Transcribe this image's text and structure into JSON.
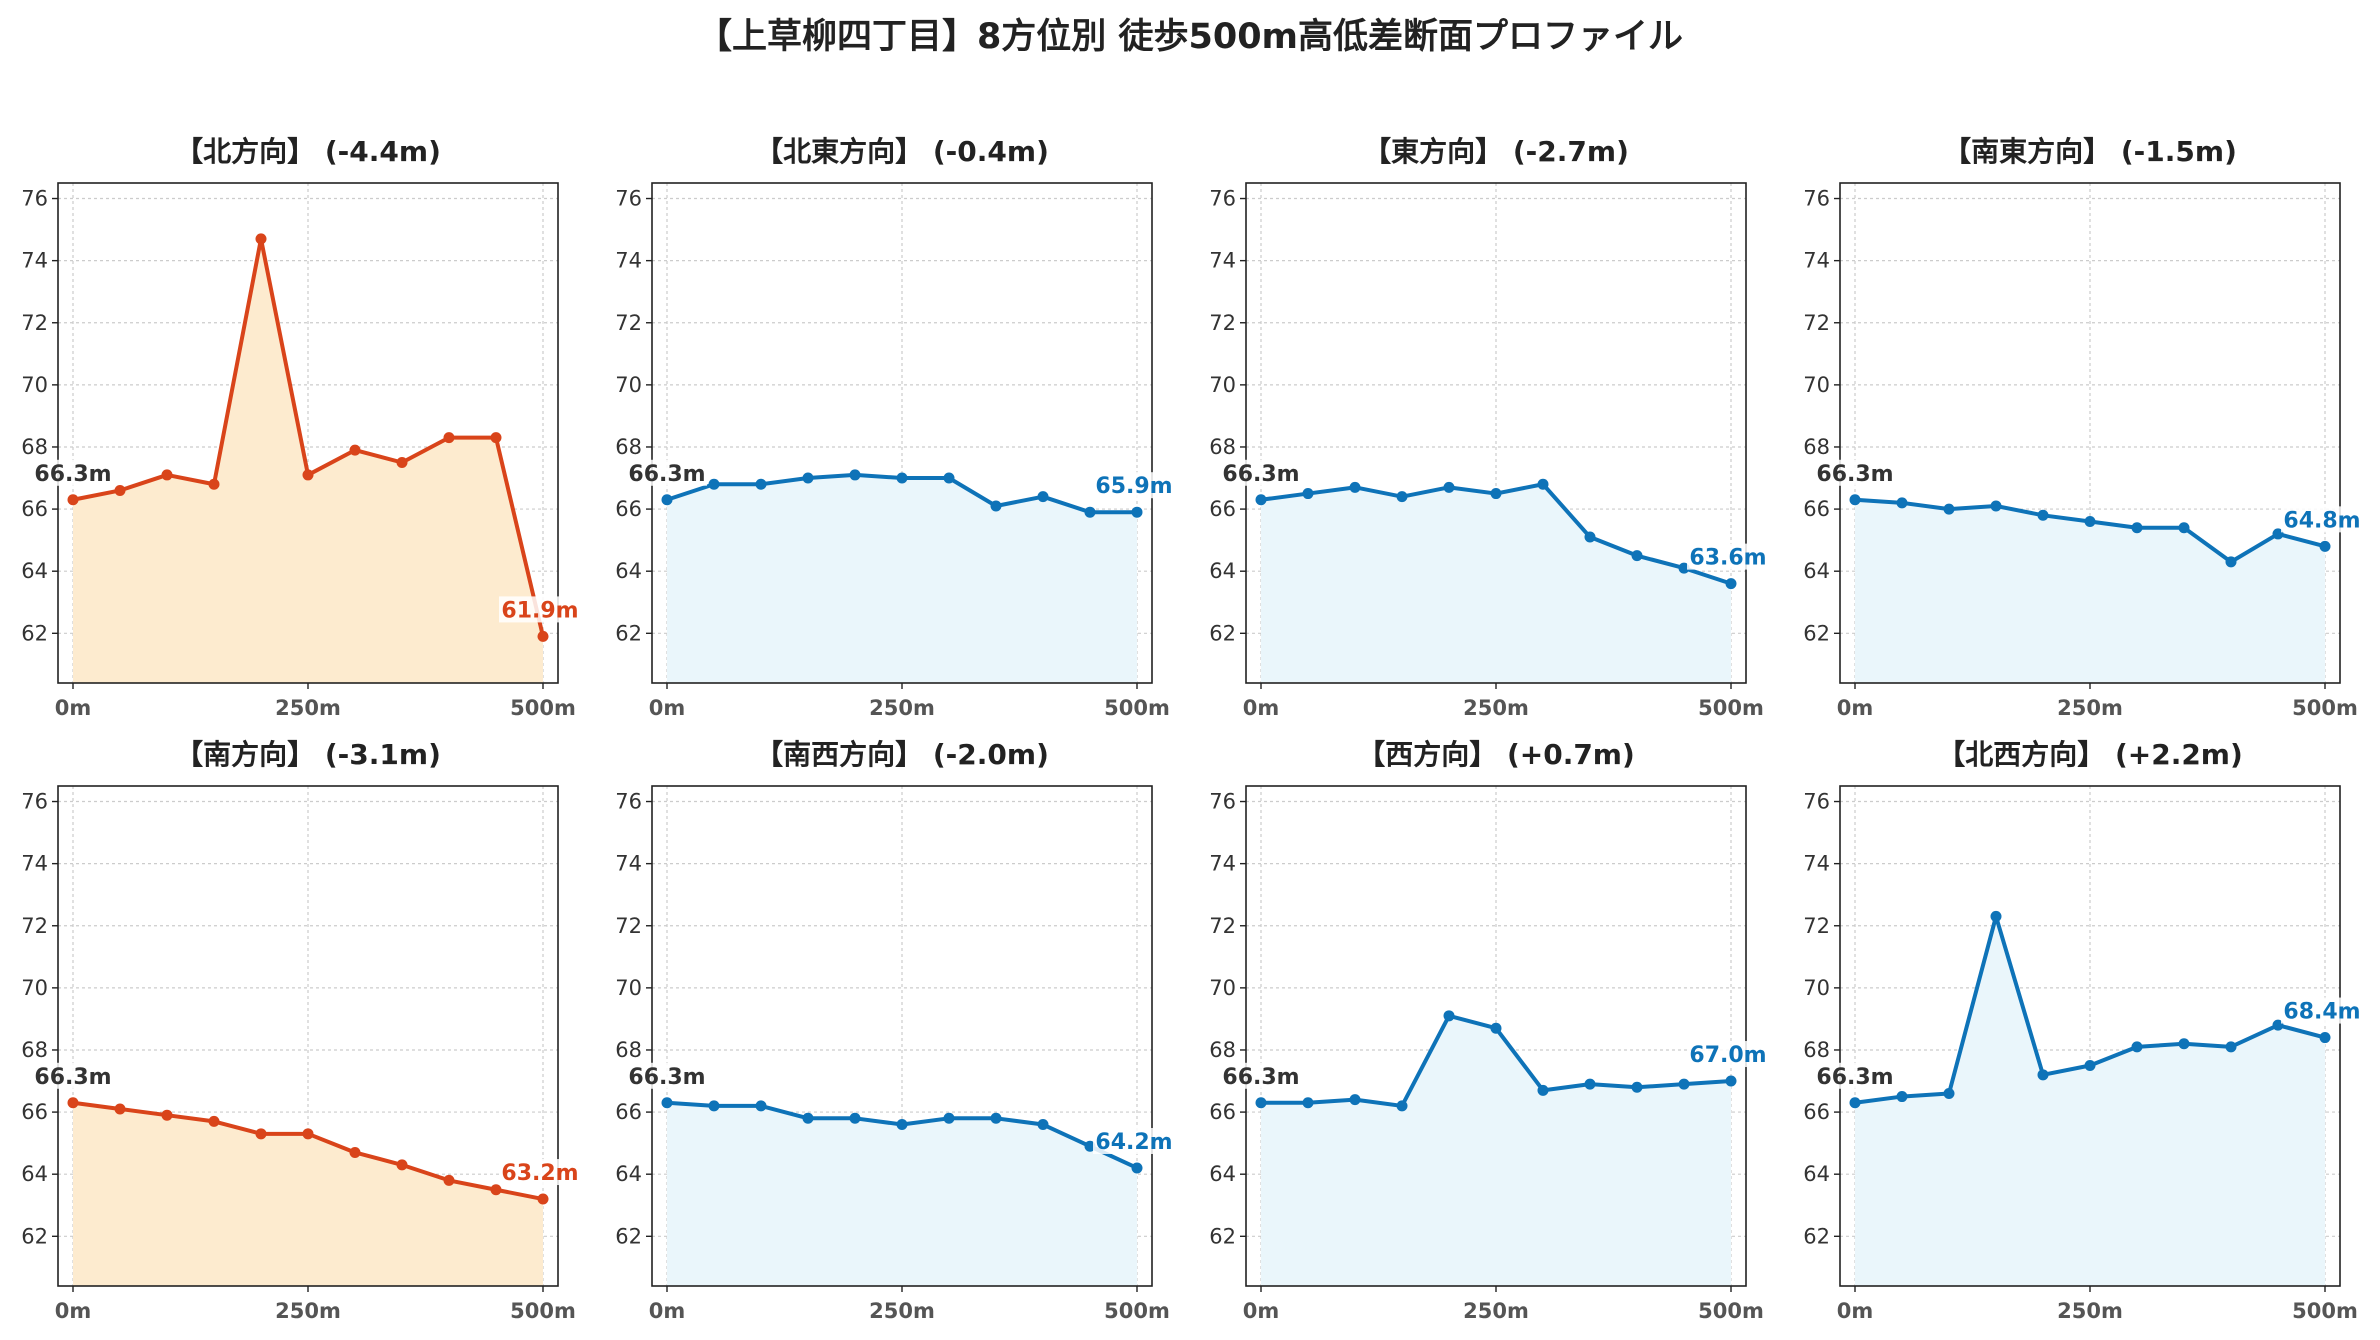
{
  "title": "【上草柳四丁目】8方位別 徒歩500m高低差断面プロファイル",
  "colors": {
    "down": "#d9441a",
    "down_fill": "#fdebcf",
    "flat": "#0e73b8",
    "flat_fill": "#eaf6fb",
    "start_label": "#333333"
  },
  "chart_data": [
    {
      "type": "area",
      "title": "【北方向】 (-4.4m)",
      "trend": "down",
      "x": [
        0,
        50,
        100,
        150,
        200,
        250,
        300,
        350,
        400,
        450,
        500
      ],
      "values": [
        66.3,
        66.6,
        67.1,
        66.8,
        74.7,
        67.1,
        67.9,
        67.5,
        68.3,
        68.3,
        61.9
      ],
      "start_label": "66.3m",
      "end_label": "61.9m",
      "ylim": [
        60.4,
        76.5
      ],
      "yticks": [
        62,
        64,
        66,
        68,
        70,
        72,
        74,
        76
      ],
      "xticks": [
        0,
        250,
        500
      ],
      "xtick_labels": [
        "0m",
        "250m",
        "500m"
      ],
      "grid": true
    },
    {
      "type": "area",
      "title": "【北東方向】 (-0.4m)",
      "trend": "flat",
      "x": [
        0,
        50,
        100,
        150,
        200,
        250,
        300,
        350,
        400,
        450,
        500
      ],
      "values": [
        66.3,
        66.8,
        66.8,
        67.0,
        67.1,
        67.0,
        67.0,
        66.1,
        66.4,
        65.9,
        65.9
      ],
      "start_label": "66.3m",
      "end_label": "65.9m",
      "ylim": [
        60.4,
        76.5
      ],
      "yticks": [
        62,
        64,
        66,
        68,
        70,
        72,
        74,
        76
      ],
      "xticks": [
        0,
        250,
        500
      ],
      "xtick_labels": [
        "0m",
        "250m",
        "500m"
      ],
      "grid": true
    },
    {
      "type": "area",
      "title": "【東方向】 (-2.7m)",
      "trend": "flat",
      "x": [
        0,
        50,
        100,
        150,
        200,
        250,
        300,
        350,
        400,
        450,
        500
      ],
      "values": [
        66.3,
        66.5,
        66.7,
        66.4,
        66.7,
        66.5,
        66.8,
        65.1,
        64.5,
        64.1,
        63.6
      ],
      "start_label": "66.3m",
      "end_label": "63.6m",
      "ylim": [
        60.4,
        76.5
      ],
      "yticks": [
        62,
        64,
        66,
        68,
        70,
        72,
        74,
        76
      ],
      "xticks": [
        0,
        250,
        500
      ],
      "xtick_labels": [
        "0m",
        "250m",
        "500m"
      ],
      "grid": true
    },
    {
      "type": "area",
      "title": "【南東方向】 (-1.5m)",
      "trend": "flat",
      "x": [
        0,
        50,
        100,
        150,
        200,
        250,
        300,
        350,
        400,
        450,
        500
      ],
      "values": [
        66.3,
        66.2,
        66.0,
        66.1,
        65.8,
        65.6,
        65.4,
        65.4,
        64.3,
        65.2,
        64.8
      ],
      "start_label": "66.3m",
      "end_label": "64.8m",
      "ylim": [
        60.4,
        76.5
      ],
      "yticks": [
        62,
        64,
        66,
        68,
        70,
        72,
        74,
        76
      ],
      "xticks": [
        0,
        250,
        500
      ],
      "xtick_labels": [
        "0m",
        "250m",
        "500m"
      ],
      "grid": true
    },
    {
      "type": "area",
      "title": "【南方向】 (-3.1m)",
      "trend": "down",
      "x": [
        0,
        50,
        100,
        150,
        200,
        250,
        300,
        350,
        400,
        450,
        500
      ],
      "values": [
        66.3,
        66.1,
        65.9,
        65.7,
        65.3,
        65.3,
        64.7,
        64.3,
        63.8,
        63.5,
        63.2
      ],
      "start_label": "66.3m",
      "end_label": "63.2m",
      "ylim": [
        60.4,
        76.5
      ],
      "yticks": [
        62,
        64,
        66,
        68,
        70,
        72,
        74,
        76
      ],
      "xticks": [
        0,
        250,
        500
      ],
      "xtick_labels": [
        "0m",
        "250m",
        "500m"
      ],
      "grid": true
    },
    {
      "type": "area",
      "title": "【南西方向】 (-2.0m)",
      "trend": "flat",
      "x": [
        0,
        50,
        100,
        150,
        200,
        250,
        300,
        350,
        400,
        450,
        500
      ],
      "values": [
        66.3,
        66.2,
        66.2,
        65.8,
        65.8,
        65.6,
        65.8,
        65.8,
        65.6,
        64.9,
        64.2
      ],
      "start_label": "66.3m",
      "end_label": "64.2m",
      "ylim": [
        60.4,
        76.5
      ],
      "yticks": [
        62,
        64,
        66,
        68,
        70,
        72,
        74,
        76
      ],
      "xticks": [
        0,
        250,
        500
      ],
      "xtick_labels": [
        "0m",
        "250m",
        "500m"
      ],
      "grid": true
    },
    {
      "type": "area",
      "title": "【西方向】 (+0.7m)",
      "trend": "flat",
      "x": [
        0,
        50,
        100,
        150,
        200,
        250,
        300,
        350,
        400,
        450,
        500
      ],
      "values": [
        66.3,
        66.3,
        66.4,
        66.2,
        69.1,
        68.7,
        66.7,
        66.9,
        66.8,
        66.9,
        67.0
      ],
      "start_label": "66.3m",
      "end_label": "67.0m",
      "ylim": [
        60.4,
        76.5
      ],
      "yticks": [
        62,
        64,
        66,
        68,
        70,
        72,
        74,
        76
      ],
      "xticks": [
        0,
        250,
        500
      ],
      "xtick_labels": [
        "0m",
        "250m",
        "500m"
      ],
      "grid": true
    },
    {
      "type": "area",
      "title": "【北西方向】 (+2.2m)",
      "trend": "flat",
      "x": [
        0,
        50,
        100,
        150,
        200,
        250,
        300,
        350,
        400,
        450,
        500
      ],
      "values": [
        66.3,
        66.5,
        66.6,
        72.3,
        67.2,
        67.5,
        68.1,
        68.2,
        68.1,
        68.8,
        68.4
      ],
      "start_label": "66.3m",
      "end_label": "68.4m",
      "ylim": [
        60.4,
        76.5
      ],
      "yticks": [
        62,
        64,
        66,
        68,
        70,
        72,
        74,
        76
      ],
      "xticks": [
        0,
        250,
        500
      ],
      "xtick_labels": [
        "0m",
        "250m",
        "500m"
      ],
      "grid": true
    }
  ]
}
